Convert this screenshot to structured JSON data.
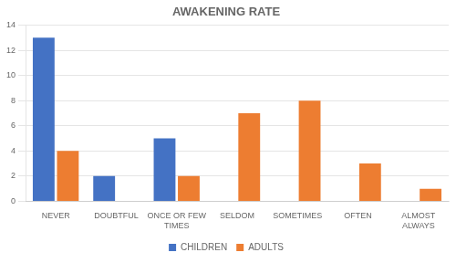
{
  "chart_data": {
    "type": "bar",
    "title": "AWAKENING RATE",
    "categories": [
      "NEVER",
      "DOUBTFUL",
      "ONCE OR FEW\nTIMES",
      "SELDOM",
      "SOMETIMES",
      "OFTEN",
      "ALMOST\nALWAYS"
    ],
    "series": [
      {
        "name": "CHILDREN",
        "color": "#4472C4",
        "values": [
          13,
          2,
          5,
          0,
          0,
          0,
          0
        ]
      },
      {
        "name": "ADULTS",
        "color": "#ED7D31",
        "values": [
          4,
          0,
          2,
          7,
          8,
          3,
          1
        ]
      }
    ],
    "ylim": [
      0,
      14
    ],
    "yticks": [
      0,
      2,
      4,
      6,
      8,
      10,
      12,
      14
    ],
    "grid": true,
    "legend": "bottom"
  }
}
